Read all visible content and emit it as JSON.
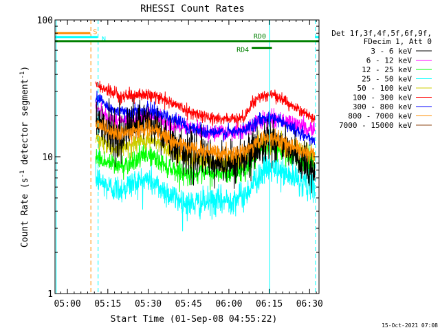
{
  "chart_data": {
    "type": "line",
    "title": "RHESSI Count Rates",
    "xlabel": "Start Time (01-Sep-08 04:55:22)",
    "ylabel_main": "Count Rate (s",
    "ylabel_sup": "-1",
    "ylabel_tail": " detector segment",
    "ylabel_sup2": "-1",
    "ylabel_close": ")",
    "yscale": "log",
    "ylim": [
      1,
      100
    ],
    "xlim_min": [
      295.37,
      393.5
    ],
    "ytick_labels": [
      {
        "value": 100,
        "label": "100"
      },
      {
        "value": 10,
        "label": "10"
      },
      {
        "value": 1,
        "label": "1"
      }
    ],
    "xtick_labels": [
      {
        "value": 300,
        "label": "05:00"
      },
      {
        "value": 315,
        "label": "05:15"
      },
      {
        "value": 330,
        "label": "05:30"
      },
      {
        "value": 345,
        "label": "05:45"
      },
      {
        "value": 360,
        "label": "06:00"
      },
      {
        "value": 375,
        "label": "06:15"
      },
      {
        "value": 390,
        "label": "06:30"
      }
    ],
    "legend_header": [
      "Det 1f,3f,4f,5f,6f,9f,",
      "FDecim 1, Att 0"
    ],
    "data_start_min": 310.5,
    "data_end_min": 392.0,
    "series": [
      {
        "name": "3 - 6 keV",
        "color": "#000000",
        "noise": 0.18,
        "profile": [
          [
            310.5,
            20
          ],
          [
            315,
            16
          ],
          [
            320,
            14
          ],
          [
            325,
            17
          ],
          [
            330,
            18
          ],
          [
            335,
            15
          ],
          [
            340,
            12
          ],
          [
            345,
            11
          ],
          [
            350,
            10
          ],
          [
            355,
            9
          ],
          [
            360,
            9
          ],
          [
            366,
            9.5
          ],
          [
            370,
            11
          ],
          [
            374,
            14
          ],
          [
            378,
            13
          ],
          [
            382,
            11
          ],
          [
            386,
            9
          ],
          [
            390,
            8
          ],
          [
            392,
            8
          ]
        ]
      },
      {
        "name": "6 - 12 keV",
        "color": "#ff00ff",
        "noise": 0.07,
        "profile": [
          [
            310.5,
            23
          ],
          [
            315,
            19
          ],
          [
            320,
            18
          ],
          [
            325,
            19
          ],
          [
            330,
            20
          ],
          [
            335,
            18.5
          ],
          [
            340,
            17
          ],
          [
            345,
            16
          ],
          [
            350,
            15.5
          ],
          [
            355,
            15
          ],
          [
            360,
            15
          ],
          [
            366,
            15.5
          ],
          [
            370,
            17.5
          ],
          [
            374,
            19
          ],
          [
            378,
            19
          ],
          [
            382,
            18
          ],
          [
            386,
            17
          ],
          [
            390,
            16
          ],
          [
            392,
            16
          ]
        ]
      },
      {
        "name": "12 - 25 keV",
        "color": "#00ff00",
        "noise": 0.09,
        "profile": [
          [
            310.5,
            10
          ],
          [
            315,
            9
          ],
          [
            320,
            8.5
          ],
          [
            325,
            9.5
          ],
          [
            330,
            10.5
          ],
          [
            335,
            9
          ],
          [
            340,
            8
          ],
          [
            345,
            7.5
          ],
          [
            350,
            7.5
          ],
          [
            355,
            7.5
          ],
          [
            360,
            7.5
          ],
          [
            366,
            8
          ],
          [
            370,
            10
          ],
          [
            374,
            12
          ],
          [
            378,
            11.5
          ],
          [
            382,
            10.5
          ],
          [
            386,
            9.5
          ],
          [
            390,
            9
          ],
          [
            392,
            8.8
          ]
        ]
      },
      {
        "name": "25 - 50 keV",
        "color": "#00ffff",
        "noise": 0.12,
        "profile": [
          [
            310.5,
            7
          ],
          [
            315,
            6
          ],
          [
            320,
            5.8
          ],
          [
            325,
            6.5
          ],
          [
            330,
            6.8
          ],
          [
            335,
            5.8
          ],
          [
            340,
            5
          ],
          [
            345,
            4.5
          ],
          [
            350,
            4.6
          ],
          [
            355,
            4.7
          ],
          [
            360,
            4.8
          ],
          [
            366,
            5.2
          ],
          [
            370,
            6.8
          ],
          [
            374,
            8.2
          ],
          [
            378,
            8
          ],
          [
            382,
            7.3
          ],
          [
            386,
            6.8
          ],
          [
            390,
            6.3
          ],
          [
            392,
            6
          ]
        ]
      },
      {
        "name": "50 - 100 keV",
        "color": "#cccc00",
        "noise": 0.08,
        "profile": [
          [
            310.5,
            14
          ],
          [
            315,
            12
          ],
          [
            320,
            11.5
          ],
          [
            325,
            12.5
          ],
          [
            330,
            13.5
          ],
          [
            335,
            12
          ],
          [
            340,
            10.5
          ],
          [
            345,
            9.8
          ],
          [
            350,
            9.5
          ],
          [
            355,
            9.4
          ],
          [
            360,
            9.3
          ],
          [
            366,
            9.8
          ],
          [
            370,
            11.5
          ],
          [
            374,
            13.5
          ],
          [
            378,
            13
          ],
          [
            382,
            12
          ],
          [
            386,
            11
          ],
          [
            390,
            10.5
          ],
          [
            392,
            10.2
          ]
        ]
      },
      {
        "name": "100 - 300 keV",
        "color": "#ff0000",
        "noise": 0.05,
        "profile": [
          [
            310.5,
            34
          ],
          [
            315,
            30
          ],
          [
            320,
            28
          ],
          [
            325,
            28
          ],
          [
            330,
            28.5
          ],
          [
            335,
            27
          ],
          [
            340,
            24
          ],
          [
            345,
            21.5
          ],
          [
            350,
            20
          ],
          [
            355,
            19
          ],
          [
            360,
            18.8
          ],
          [
            366,
            19.5
          ],
          [
            369,
            25
          ],
          [
            372,
            28
          ],
          [
            376,
            28.5
          ],
          [
            380,
            26
          ],
          [
            384,
            23
          ],
          [
            388,
            21
          ],
          [
            392,
            19
          ]
        ]
      },
      {
        "name": "300 - 800 keV",
        "color": "#0000ff",
        "noise": 0.06,
        "profile": [
          [
            310.5,
            28
          ],
          [
            315,
            23
          ],
          [
            320,
            21
          ],
          [
            325,
            21.5
          ],
          [
            330,
            22
          ],
          [
            335,
            20.5
          ],
          [
            340,
            18.5
          ],
          [
            345,
            16.5
          ],
          [
            350,
            15.5
          ],
          [
            355,
            15
          ],
          [
            360,
            15
          ],
          [
            366,
            15.5
          ],
          [
            370,
            18
          ],
          [
            374,
            19.5
          ],
          [
            378,
            19
          ],
          [
            382,
            17
          ],
          [
            386,
            15
          ],
          [
            390,
            13.5
          ],
          [
            392,
            13
          ]
        ]
      },
      {
        "name": "800 - 7000 keV",
        "color": "#ff8c00",
        "noise": 0.07,
        "profile": [
          [
            310.5,
            18
          ],
          [
            315,
            15.5
          ],
          [
            320,
            14.5
          ],
          [
            325,
            15.5
          ],
          [
            330,
            16.2
          ],
          [
            335,
            14.5
          ],
          [
            340,
            12.8
          ],
          [
            345,
            11.6
          ],
          [
            350,
            11
          ],
          [
            355,
            10.6
          ],
          [
            360,
            10.4
          ],
          [
            366,
            10.8
          ],
          [
            370,
            12.5
          ],
          [
            374,
            14
          ],
          [
            378,
            13.5
          ],
          [
            382,
            12.3
          ],
          [
            386,
            11.3
          ],
          [
            390,
            10.6
          ],
          [
            392,
            10.4
          ]
        ]
      },
      {
        "name": "7000 - 15000 keV",
        "color": "#8b4513",
        "noise": 0,
        "profile": []
      }
    ],
    "annotations": [
      {
        "label": "S",
        "color": "#ff8c00",
        "bar_y": 80,
        "x_start": 295.37,
        "x_end": 308.5,
        "marker_x": 308.7
      },
      {
        "label": "N",
        "color": "#00ffff",
        "bar_y": 75,
        "x_start": 295.37,
        "x_end": 311.2,
        "x_resume": 392.0,
        "marker_x": 311.4
      },
      {
        "label": "RD0",
        "color": "#008000",
        "bar_y": 70,
        "x_start": 295.37,
        "x_end": 393.5
      },
      {
        "label": "RD4",
        "color": "#008000",
        "bar_y": 62.5,
        "x_start": 368.5,
        "x_end": 376
      }
    ],
    "vertical_lines": [
      {
        "x": 295.8,
        "color": "#00ffff",
        "style": "solid"
      },
      {
        "x": 308.7,
        "color": "#ff8c00",
        "style": "dashed"
      },
      {
        "x": 311.4,
        "color": "#00ffff",
        "style": "dashed"
      },
      {
        "x": 375.2,
        "color": "#00ffff",
        "style": "solid"
      },
      {
        "x": 392.2,
        "color": "#00ffff",
        "style": "dashed"
      }
    ]
  },
  "footer_timestamp": "15-Oct-2021 07:08"
}
